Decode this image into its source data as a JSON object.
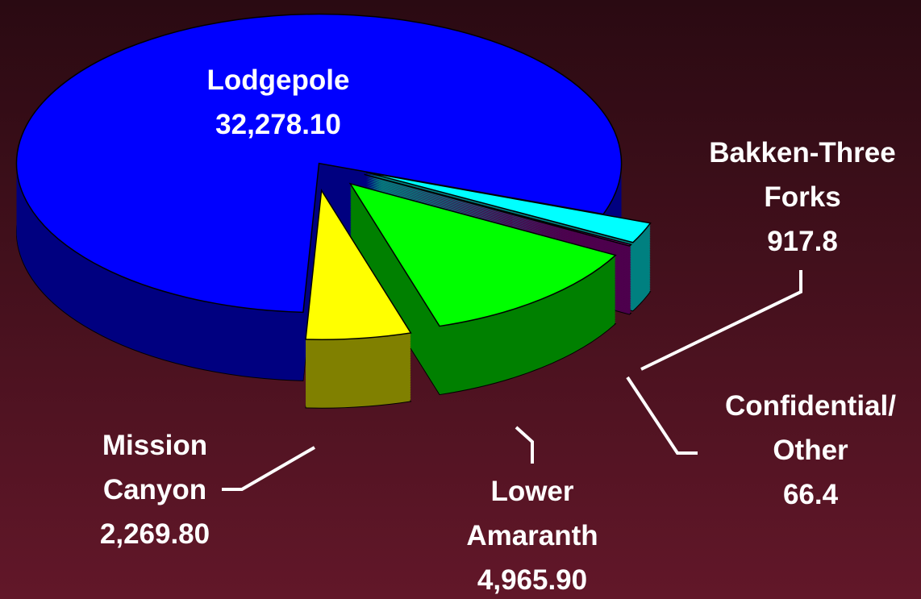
{
  "chart_data": {
    "type": "pie",
    "categories": [
      "Lodgepole",
      "Bakken-Three Forks",
      "Confidential/ Other",
      "Lower Amaranth",
      "Mission Canyon"
    ],
    "values": [
      32278.1,
      917.8,
      66.4,
      4965.9,
      2269.8
    ],
    "value_labels": [
      "32,278.10",
      "917.8",
      "66.4",
      "4,965.90",
      "2,269.80"
    ],
    "colors": [
      "#0000ff",
      "#00ffff",
      "#990099",
      "#00ff00",
      "#ffff00"
    ]
  }
}
